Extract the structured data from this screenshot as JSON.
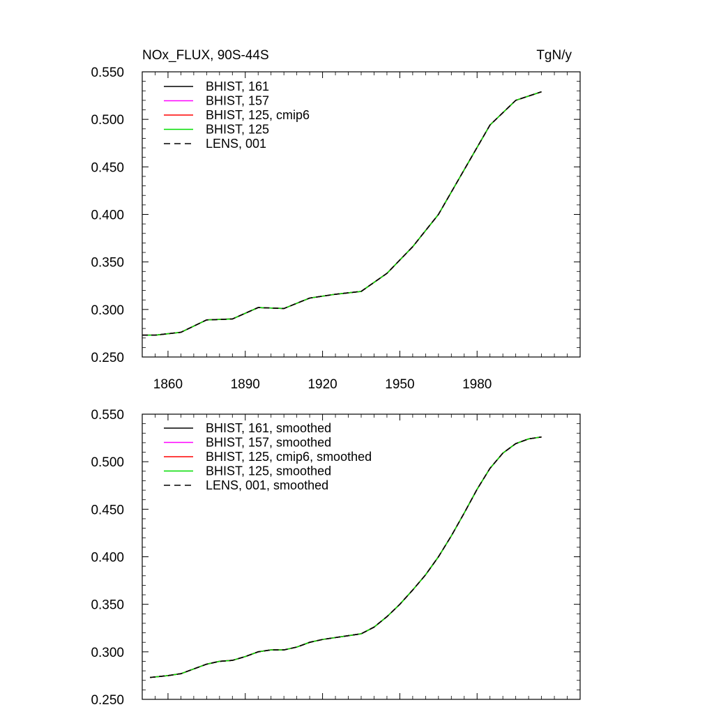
{
  "chart_data": [
    {
      "type": "line",
      "title": "NOx_FLUX, 90S-44S",
      "units_label": "TgN/y",
      "xlabel": "",
      "ylabel": "",
      "xlim": [
        1850,
        2020
      ],
      "ylim": [
        0.25,
        0.55
      ],
      "xticks": [
        1860,
        1890,
        1920,
        1950,
        1980
      ],
      "xtick_labels": [
        "1860",
        "1890",
        "1920",
        "1950",
        "1980"
      ],
      "yticks": [
        0.25,
        0.3,
        0.35,
        0.4,
        0.45,
        0.5,
        0.55
      ],
      "ytick_labels": [
        "0.250",
        "0.300",
        "0.350",
        "0.400",
        "0.450",
        "0.500",
        "0.550"
      ],
      "legend_position": "top-left",
      "grid": false,
      "x": [
        1850,
        1855,
        1865,
        1875,
        1885,
        1895,
        1905,
        1915,
        1925,
        1935,
        1945,
        1955,
        1965,
        1975,
        1985,
        1995,
        2005
      ],
      "series": [
        {
          "name": "BHIST, 161",
          "color": "#000000",
          "dash": "solid",
          "values": [
            0.273,
            0.273,
            0.276,
            0.289,
            0.29,
            0.302,
            0.301,
            0.312,
            0.316,
            0.319,
            0.338,
            0.366,
            0.4,
            0.447,
            0.494,
            0.52,
            0.529
          ]
        },
        {
          "name": "BHIST, 157",
          "color": "#ff00ff",
          "dash": "solid",
          "values": [
            0.273,
            0.273,
            0.276,
            0.289,
            0.29,
            0.302,
            0.301,
            0.312,
            0.316,
            0.319,
            0.338,
            0.366,
            0.4,
            0.447,
            0.494,
            0.52,
            0.529
          ]
        },
        {
          "name": "BHIST, 125, cmip6",
          "color": "#ff0000",
          "dash": "solid",
          "values": [
            0.273,
            0.273,
            0.276,
            0.289,
            0.29,
            0.302,
            0.301,
            0.312,
            0.316,
            0.319,
            0.338,
            0.366,
            0.4,
            0.447,
            0.494,
            0.52,
            0.529
          ]
        },
        {
          "name": "BHIST, 125",
          "color": "#00dd00",
          "dash": "solid",
          "values": [
            0.273,
            0.273,
            0.276,
            0.289,
            0.29,
            0.302,
            0.301,
            0.312,
            0.316,
            0.319,
            0.338,
            0.366,
            0.4,
            0.447,
            0.494,
            0.52,
            0.529
          ]
        },
        {
          "name": "LENS, 001",
          "color": "#000000",
          "dash": "dashed",
          "values": [
            0.273,
            0.273,
            0.276,
            0.289,
            0.29,
            0.302,
            0.301,
            0.312,
            0.316,
            0.319,
            0.338,
            0.366,
            0.4,
            0.447,
            0.494,
            0.52,
            0.529
          ]
        }
      ]
    },
    {
      "type": "line",
      "title": "",
      "xlabel": "",
      "ylabel": "",
      "xlim": [
        1850,
        2020
      ],
      "ylim": [
        0.25,
        0.55
      ],
      "xticks": [
        1860,
        1890,
        1920,
        1950,
        1980
      ],
      "yticks": [
        0.25,
        0.3,
        0.35,
        0.4,
        0.45,
        0.5,
        0.55
      ],
      "ytick_labels": [
        "0.250",
        "0.300",
        "0.350",
        "0.400",
        "0.450",
        "0.500",
        "0.550"
      ],
      "legend_position": "top-left",
      "grid": false,
      "x": [
        1853,
        1860,
        1865,
        1870,
        1875,
        1880,
        1885,
        1890,
        1895,
        1900,
        1905,
        1910,
        1915,
        1920,
        1925,
        1930,
        1935,
        1940,
        1945,
        1950,
        1955,
        1960,
        1965,
        1970,
        1975,
        1980,
        1985,
        1990,
        1995,
        2000,
        2005
      ],
      "series": [
        {
          "name": "BHIST, 161, smoothed",
          "color": "#000000",
          "dash": "solid",
          "values": [
            0.273,
            0.275,
            0.277,
            0.282,
            0.287,
            0.29,
            0.291,
            0.295,
            0.3,
            0.302,
            0.302,
            0.305,
            0.31,
            0.313,
            0.315,
            0.317,
            0.319,
            0.326,
            0.337,
            0.35,
            0.365,
            0.381,
            0.4,
            0.422,
            0.446,
            0.471,
            0.493,
            0.509,
            0.519,
            0.524,
            0.526
          ]
        },
        {
          "name": "BHIST, 157, smoothed",
          "color": "#ff00ff",
          "dash": "solid",
          "values": [
            0.273,
            0.275,
            0.277,
            0.282,
            0.287,
            0.29,
            0.291,
            0.295,
            0.3,
            0.302,
            0.302,
            0.305,
            0.31,
            0.313,
            0.315,
            0.317,
            0.319,
            0.326,
            0.337,
            0.35,
            0.365,
            0.381,
            0.4,
            0.422,
            0.446,
            0.471,
            0.493,
            0.509,
            0.519,
            0.524,
            0.526
          ]
        },
        {
          "name": "BHIST, 125, cmip6, smoothed",
          "color": "#ff0000",
          "dash": "solid",
          "values": [
            0.273,
            0.275,
            0.277,
            0.282,
            0.287,
            0.29,
            0.291,
            0.295,
            0.3,
            0.302,
            0.302,
            0.305,
            0.31,
            0.313,
            0.315,
            0.317,
            0.319,
            0.326,
            0.337,
            0.35,
            0.365,
            0.381,
            0.4,
            0.422,
            0.446,
            0.471,
            0.493,
            0.509,
            0.519,
            0.524,
            0.526
          ]
        },
        {
          "name": "BHIST, 125, smoothed",
          "color": "#00dd00",
          "dash": "solid",
          "values": [
            0.273,
            0.275,
            0.277,
            0.282,
            0.287,
            0.29,
            0.291,
            0.295,
            0.3,
            0.302,
            0.302,
            0.305,
            0.31,
            0.313,
            0.315,
            0.317,
            0.319,
            0.326,
            0.337,
            0.35,
            0.365,
            0.381,
            0.4,
            0.422,
            0.446,
            0.471,
            0.493,
            0.509,
            0.519,
            0.524,
            0.526
          ]
        },
        {
          "name": "LENS, 001, smoothed",
          "color": "#000000",
          "dash": "dashed",
          "values": [
            0.273,
            0.275,
            0.277,
            0.282,
            0.287,
            0.29,
            0.291,
            0.295,
            0.3,
            0.302,
            0.302,
            0.305,
            0.31,
            0.313,
            0.315,
            0.317,
            0.319,
            0.326,
            0.337,
            0.35,
            0.365,
            0.381,
            0.4,
            0.422,
            0.446,
            0.471,
            0.493,
            0.509,
            0.519,
            0.524,
            0.526
          ]
        }
      ]
    }
  ]
}
